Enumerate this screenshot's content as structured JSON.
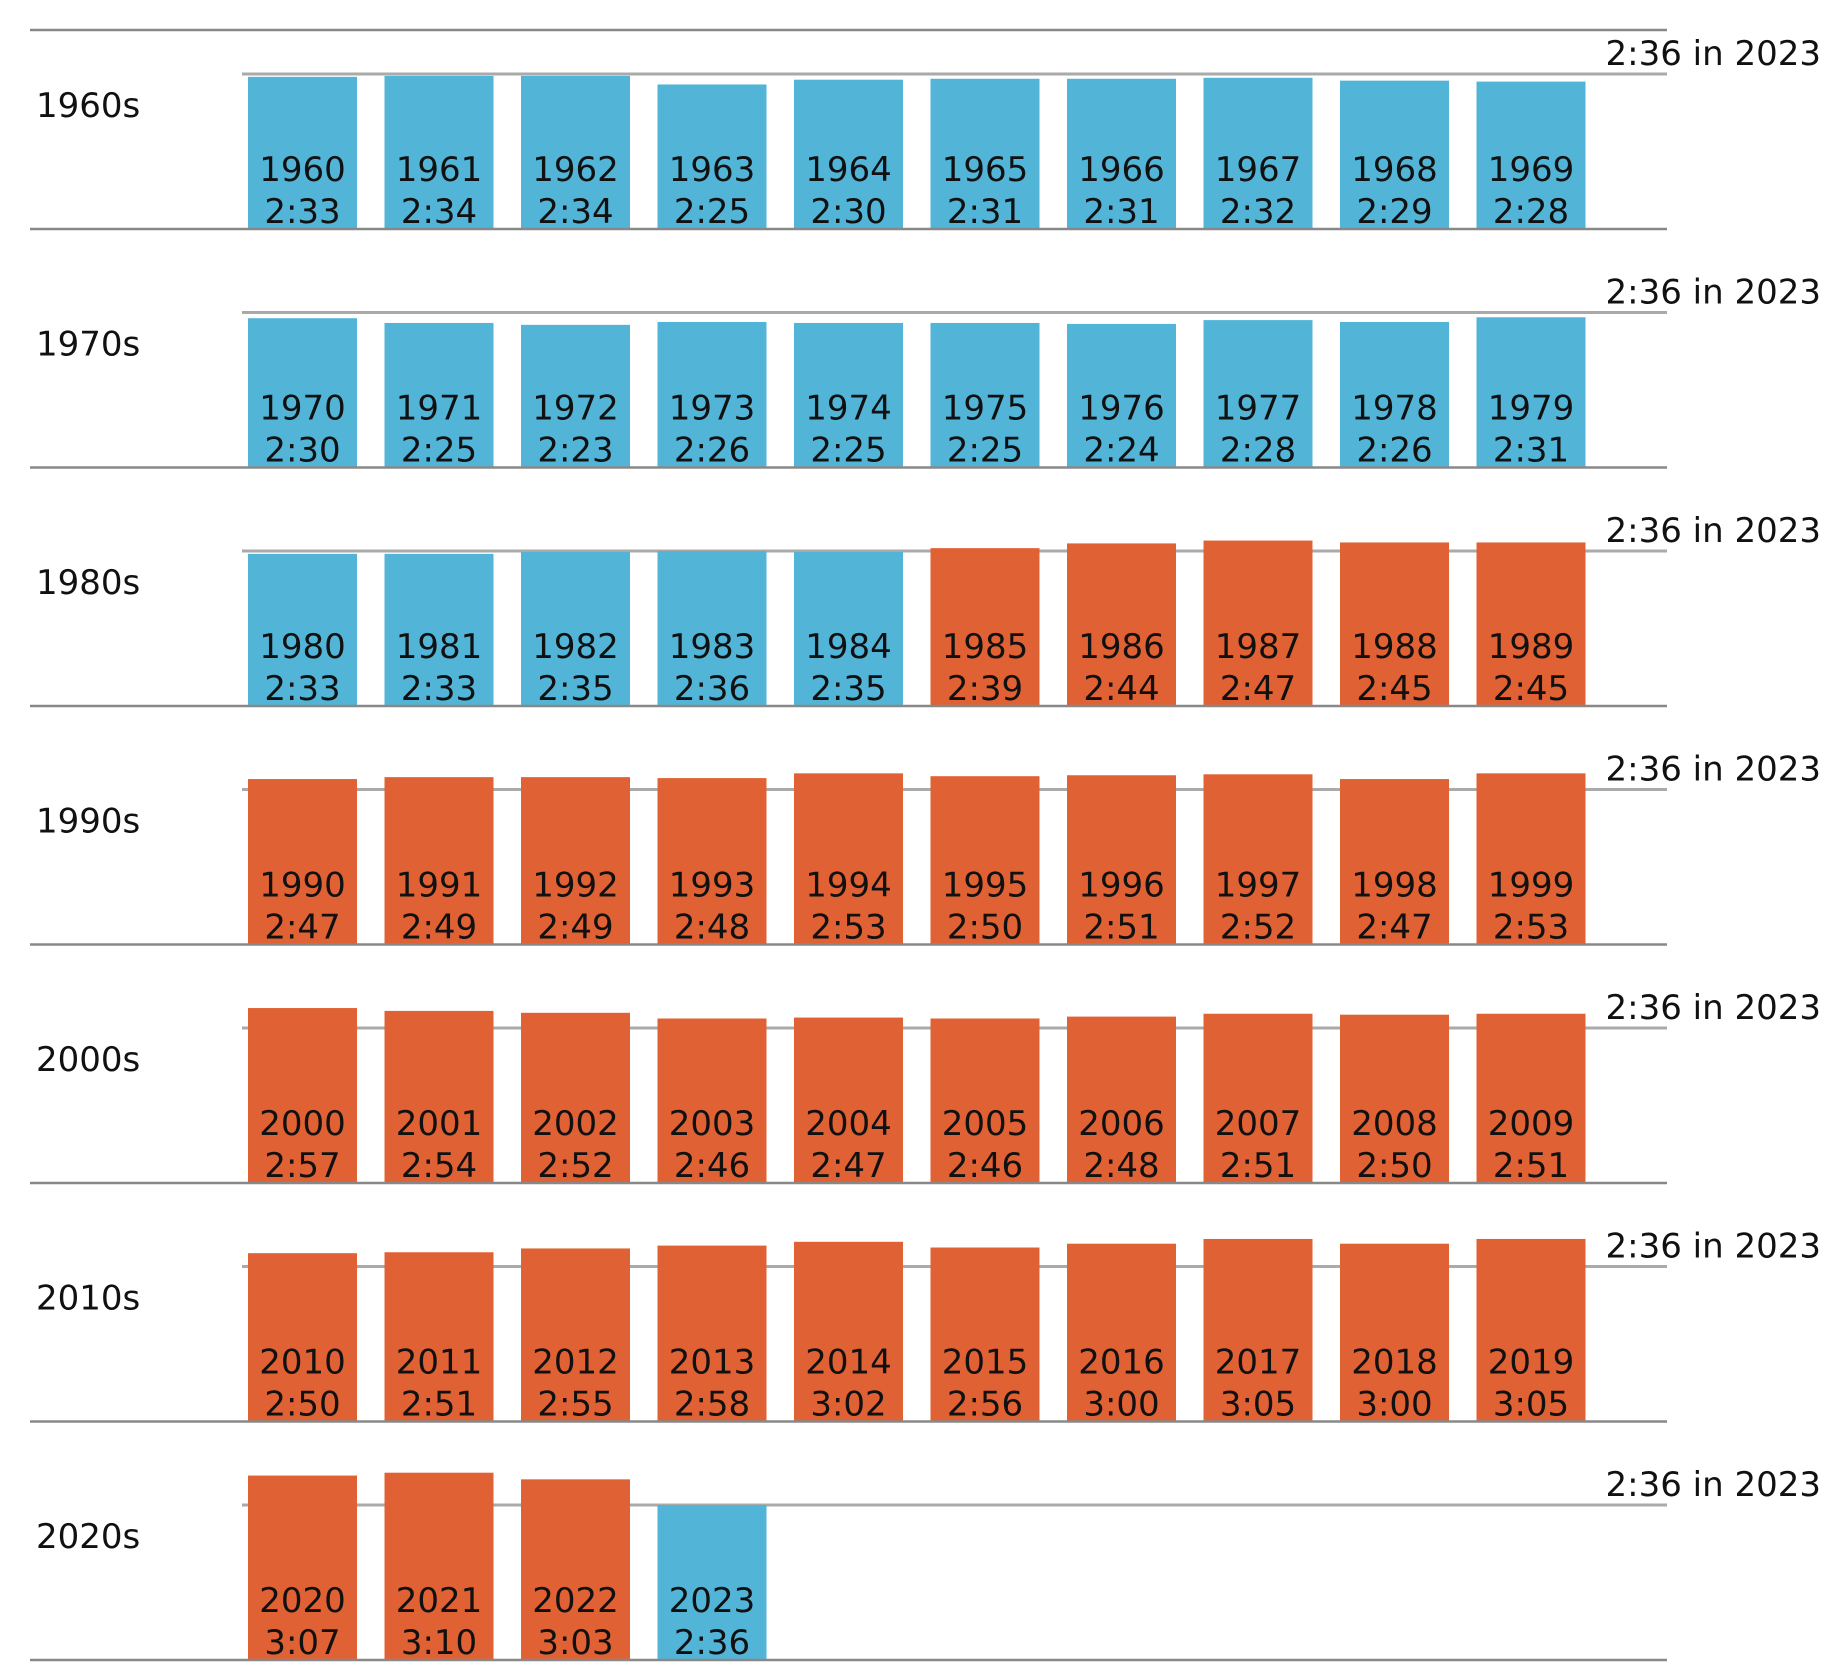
{
  "chart_data": {
    "type": "bar",
    "colors": {
      "below_or_equal_2023": "#52b5d8",
      "above_2023": "#e06133",
      "reference_line": "#aaaaaa",
      "baseline": "#888888"
    },
    "reference": {
      "label": "2:36 in 2023",
      "value": "2:36"
    },
    "decades": [
      {
        "label": "1960s",
        "years": [
          {
            "year": "1960",
            "time": "2:33"
          },
          {
            "year": "1961",
            "time": "2:34"
          },
          {
            "year": "1962",
            "time": "2:34"
          },
          {
            "year": "1963",
            "time": "2:25"
          },
          {
            "year": "1964",
            "time": "2:30"
          },
          {
            "year": "1965",
            "time": "2:31"
          },
          {
            "year": "1966",
            "time": "2:31"
          },
          {
            "year": "1967",
            "time": "2:32"
          },
          {
            "year": "1968",
            "time": "2:29"
          },
          {
            "year": "1969",
            "time": "2:28"
          }
        ]
      },
      {
        "label": "1970s",
        "years": [
          {
            "year": "1970",
            "time": "2:30"
          },
          {
            "year": "1971",
            "time": "2:25"
          },
          {
            "year": "1972",
            "time": "2:23"
          },
          {
            "year": "1973",
            "time": "2:26"
          },
          {
            "year": "1974",
            "time": "2:25"
          },
          {
            "year": "1975",
            "time": "2:25"
          },
          {
            "year": "1976",
            "time": "2:24"
          },
          {
            "year": "1977",
            "time": "2:28"
          },
          {
            "year": "1978",
            "time": "2:26"
          },
          {
            "year": "1979",
            "time": "2:31"
          }
        ]
      },
      {
        "label": "1980s",
        "years": [
          {
            "year": "1980",
            "time": "2:33"
          },
          {
            "year": "1981",
            "time": "2:33"
          },
          {
            "year": "1982",
            "time": "2:35"
          },
          {
            "year": "1983",
            "time": "2:36"
          },
          {
            "year": "1984",
            "time": "2:35"
          },
          {
            "year": "1985",
            "time": "2:39"
          },
          {
            "year": "1986",
            "time": "2:44"
          },
          {
            "year": "1987",
            "time": "2:47"
          },
          {
            "year": "1988",
            "time": "2:45"
          },
          {
            "year": "1989",
            "time": "2:45"
          }
        ]
      },
      {
        "label": "1990s",
        "years": [
          {
            "year": "1990",
            "time": "2:47"
          },
          {
            "year": "1991",
            "time": "2:49"
          },
          {
            "year": "1992",
            "time": "2:49"
          },
          {
            "year": "1993",
            "time": "2:48"
          },
          {
            "year": "1994",
            "time": "2:53"
          },
          {
            "year": "1995",
            "time": "2:50"
          },
          {
            "year": "1996",
            "time": "2:51"
          },
          {
            "year": "1997",
            "time": "2:52"
          },
          {
            "year": "1998",
            "time": "2:47"
          },
          {
            "year": "1999",
            "time": "2:53"
          }
        ]
      },
      {
        "label": "2000s",
        "years": [
          {
            "year": "2000",
            "time": "2:57"
          },
          {
            "year": "2001",
            "time": "2:54"
          },
          {
            "year": "2002",
            "time": "2:52"
          },
          {
            "year": "2003",
            "time": "2:46"
          },
          {
            "year": "2004",
            "time": "2:47"
          },
          {
            "year": "2005",
            "time": "2:46"
          },
          {
            "year": "2006",
            "time": "2:48"
          },
          {
            "year": "2007",
            "time": "2:51"
          },
          {
            "year": "2008",
            "time": "2:50"
          },
          {
            "year": "2009",
            "time": "2:51"
          }
        ]
      },
      {
        "label": "2010s",
        "years": [
          {
            "year": "2010",
            "time": "2:50"
          },
          {
            "year": "2011",
            "time": "2:51"
          },
          {
            "year": "2012",
            "time": "2:55"
          },
          {
            "year": "2013",
            "time": "2:58"
          },
          {
            "year": "2014",
            "time": "3:02"
          },
          {
            "year": "2015",
            "time": "2:56"
          },
          {
            "year": "2016",
            "time": "3:00"
          },
          {
            "year": "2017",
            "time": "3:05"
          },
          {
            "year": "2018",
            "time": "3:00"
          },
          {
            "year": "2019",
            "time": "3:05"
          }
        ]
      },
      {
        "label": "2020s",
        "years": [
          {
            "year": "2020",
            "time": "3:07"
          },
          {
            "year": "2021",
            "time": "3:10"
          },
          {
            "year": "2022",
            "time": "3:03"
          },
          {
            "year": "2023",
            "time": "2:36"
          }
        ]
      }
    ]
  }
}
